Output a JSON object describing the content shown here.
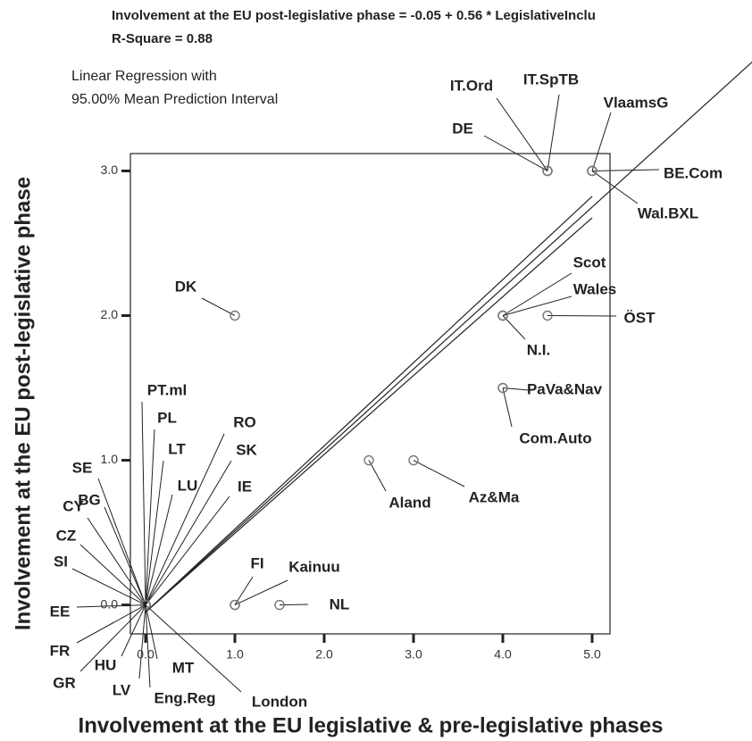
{
  "chart_data": {
    "type": "scatter",
    "title": "Involvement at the EU post-legislative phase = -0.05 + 0.56 * LegislativeInclu",
    "subtitle": "R-Square = 0.88",
    "legend_text": [
      "Linear Regression with",
      "95.00% Mean Prediction Interval"
    ],
    "x_label": "Involvement at the EU legislative & pre-legislative phases",
    "y_label": "Involvement at the EU post-legislative phase",
    "fit": {
      "intercept": -0.05,
      "slope": 0.56
    },
    "xlim": [
      -0.17,
      5.2
    ],
    "ylim": [
      -0.2,
      3.12
    ],
    "xticks": [
      {
        "value": 0,
        "label": "0.0"
      },
      {
        "value": 1,
        "label": "1.0"
      },
      {
        "value": 2,
        "label": "2.0"
      },
      {
        "value": 3,
        "label": "3.0"
      },
      {
        "value": 4,
        "label": "4.0"
      },
      {
        "value": 5,
        "label": "5.0"
      }
    ],
    "yticks": [
      {
        "value": 0,
        "label": "0.0"
      },
      {
        "value": 1,
        "label": "1.0"
      },
      {
        "value": 2,
        "label": "2.0"
      },
      {
        "value": 3,
        "label": "3.0"
      }
    ],
    "color": "#777777",
    "points": [
      {
        "label": "DE",
        "x": 4.5,
        "y": 3
      },
      {
        "label": "IT.Ord",
        "x": 4.5,
        "y": 3
      },
      {
        "label": "IT.SpTB",
        "x": 4.5,
        "y": 3
      },
      {
        "label": "VlaamsG",
        "x": 5,
        "y": 3
      },
      {
        "label": "BE.Com",
        "x": 5,
        "y": 3
      },
      {
        "label": "Wal.BXL",
        "x": 5,
        "y": 3
      },
      {
        "label": "DK",
        "x": 1,
        "y": 2
      },
      {
        "label": "Scot",
        "x": 4,
        "y": 2
      },
      {
        "label": "Wales",
        "x": 4,
        "y": 2
      },
      {
        "label": "N.I.",
        "x": 4,
        "y": 2
      },
      {
        "label": "ÖST",
        "x": 4.5,
        "y": 2
      },
      {
        "label": "PaVa&Nav",
        "x": 4,
        "y": 1.5
      },
      {
        "label": "Com.Auto",
        "x": 4,
        "y": 1.5
      },
      {
        "label": "Aland",
        "x": 2.5,
        "y": 1
      },
      {
        "label": "Az&Ma",
        "x": 3,
        "y": 1
      },
      {
        "label": "FI",
        "x": 1,
        "y": 0
      },
      {
        "label": "Kainuu",
        "x": 1,
        "y": 0
      },
      {
        "label": "NL",
        "x": 1.5,
        "y": 0
      },
      {
        "label": "PT.ml",
        "x": 0,
        "y": 0
      },
      {
        "label": "PL",
        "x": 0,
        "y": 0
      },
      {
        "label": "LT",
        "x": 0,
        "y": 0
      },
      {
        "label": "RO",
        "x": 0,
        "y": 0
      },
      {
        "label": "SK",
        "x": 0,
        "y": 0
      },
      {
        "label": "LU",
        "x": 0,
        "y": 0
      },
      {
        "label": "IE",
        "x": 0,
        "y": 0
      },
      {
        "label": "SE",
        "x": 0,
        "y": 0
      },
      {
        "label": "BG",
        "x": 0,
        "y": 0
      },
      {
        "label": "CY",
        "x": 0,
        "y": 0
      },
      {
        "label": "CZ",
        "x": 0,
        "y": 0
      },
      {
        "label": "SI",
        "x": 0,
        "y": 0
      },
      {
        "label": "EE",
        "x": 0,
        "y": 0
      },
      {
        "label": "FR",
        "x": 0,
        "y": 0
      },
      {
        "label": "GR",
        "x": 0,
        "y": 0
      },
      {
        "label": "HU",
        "x": 0,
        "y": 0
      },
      {
        "label": "LV",
        "x": 0,
        "y": 0
      },
      {
        "label": "MT",
        "x": 0,
        "y": 0
      },
      {
        "label": "Eng.Reg",
        "x": 0,
        "y": 0
      },
      {
        "label": "London",
        "x": 0,
        "y": 0
      }
    ]
  }
}
